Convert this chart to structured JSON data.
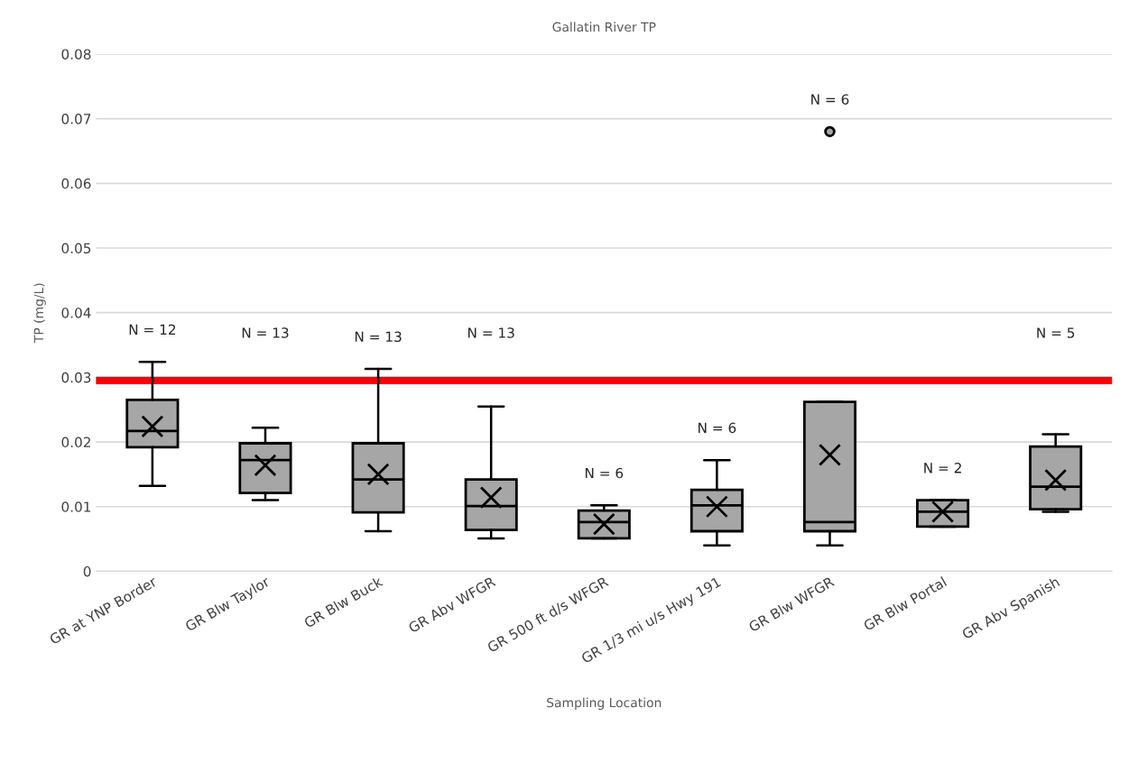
{
  "chart_data": {
    "type": "box",
    "title": "Gallatin River TP",
    "xlabel": "Sampling Location",
    "ylabel": "TP (mg/L)",
    "categories": [
      "GR at YNP Border",
      "GR Blw Taylor",
      "GR Blw Buck",
      "GR Abv WFGR",
      "GR 500 ft d/s WFGR",
      "GR 1/3 mi u/s Hwy 191",
      "GR Blw WFGR",
      "GR Blw Portal",
      "GR Abv Spanish"
    ],
    "color": "#a6a6a6",
    "boxes": [
      {
        "low": 0.0132,
        "q1": 0.0192,
        "median": 0.0217,
        "q3": 0.0265,
        "high": 0.0324,
        "mean": 0.0224
      },
      {
        "low": 0.011,
        "q1": 0.0121,
        "median": 0.0172,
        "q3": 0.0198,
        "high": 0.0222,
        "mean": 0.0164
      },
      {
        "low": 0.0062,
        "q1": 0.0091,
        "median": 0.0142,
        "q3": 0.0198,
        "high": 0.0313,
        "mean": 0.015
      },
      {
        "low": 0.0051,
        "q1": 0.0064,
        "median": 0.0101,
        "q3": 0.0142,
        "high": 0.0255,
        "mean": 0.0114
      },
      {
        "low": 0.0051,
        "q1": 0.0051,
        "median": 0.0076,
        "q3": 0.0094,
        "high": 0.0102,
        "mean": 0.0073
      },
      {
        "low": 0.004,
        "q1": 0.0062,
        "median": 0.0102,
        "q3": 0.0126,
        "high": 0.0172,
        "mean": 0.01
      },
      {
        "low": 0.004,
        "q1": 0.0062,
        "median": 0.0076,
        "q3": 0.0262,
        "high": 0.0262,
        "mean": 0.018,
        "outliers": [
          0.068
        ]
      },
      {
        "low": 0.0069,
        "q1": 0.0069,
        "median": 0.0092,
        "q3": 0.011,
        "high": 0.011,
        "mean": 0.0092
      },
      {
        "low": 0.0092,
        "q1": 0.0096,
        "median": 0.0131,
        "q3": 0.0193,
        "high": 0.0212,
        "mean": 0.0141
      }
    ],
    "ylim": [
      0,
      0.08
    ],
    "yticks": [
      0,
      0.01,
      0.02,
      0.03,
      0.04,
      0.05,
      0.06,
      0.07,
      0.08
    ],
    "grid": "y",
    "legend": false,
    "ref_lines": [
      {
        "axis": "y",
        "value": 0.0295,
        "color": "#ff0000"
      }
    ],
    "annotations": [
      "N = 12",
      "N = 13",
      "N = 13",
      "N = 13",
      "N = 6",
      "N = 6",
      "N = 6",
      "N = 2",
      "N = 5"
    ]
  }
}
